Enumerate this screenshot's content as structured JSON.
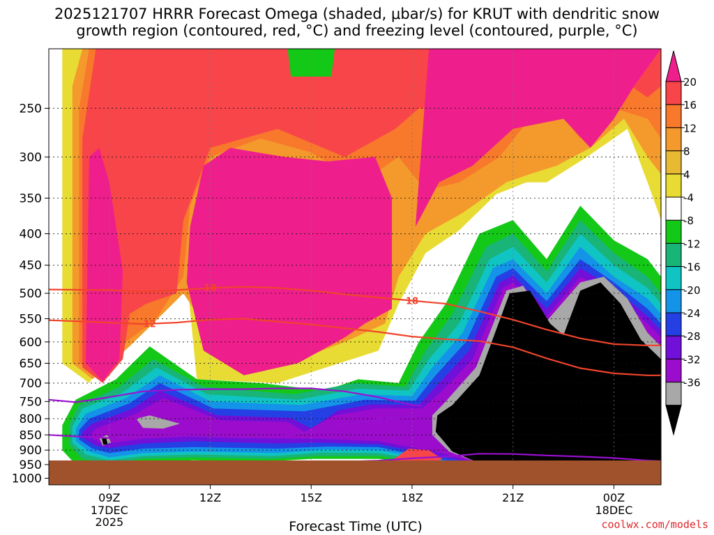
{
  "title_line1": "2025121707 HRRR Forecast Omega (shaded, μbar/s) for KRUT with dendritic snow",
  "title_line2": "growth region (contoured, red, °C) and freezing level (contoured, purple, °C)",
  "credit": "coolwx.com/models",
  "chart_data": {
    "type": "heatmap",
    "xlabel": "Forecast Time (UTC)",
    "ylabel": "",
    "x_range_hours": [
      7.2,
      25.4
    ],
    "y_range_hpa": [
      200,
      1025
    ],
    "y_scale": "log-pressure",
    "grid": true,
    "x_ticks": [
      {
        "hour": 9,
        "label": "09Z",
        "sub": [
          "17DEC",
          "2025"
        ]
      },
      {
        "hour": 12,
        "label": "12Z",
        "sub": []
      },
      {
        "hour": 15,
        "label": "15Z",
        "sub": []
      },
      {
        "hour": 18,
        "label": "18Z",
        "sub": []
      },
      {
        "hour": 21,
        "label": "21Z",
        "sub": []
      },
      {
        "hour": 24,
        "label": "00Z",
        "sub": [
          "18DEC"
        ]
      }
    ],
    "y_ticks": [
      250,
      300,
      350,
      400,
      450,
      500,
      550,
      600,
      650,
      700,
      750,
      800,
      850,
      900,
      950,
      1000
    ],
    "surface_pressure_hpa": 960,
    "colorbar": {
      "labels": [
        "20",
        "16",
        "12",
        "8",
        "4",
        "-4",
        "-8",
        "-12",
        "-16",
        "-20",
        "-24",
        "-28",
        "-32",
        "-36"
      ],
      "colors": [
        "#ee1f8c",
        "#f8454a",
        "#f8782c",
        "#f49a2c",
        "#e8ba34",
        "#e8dc34",
        "#ffffff",
        "#14c818",
        "#18b478",
        "#10c4c4",
        "#1494e8",
        "#2440e4",
        "#7010d8",
        "#9c0ccc",
        "#a8a8a8",
        "#000000"
      ],
      "top_color": "#ee1f8c",
      "bottom_color": "#000000"
    },
    "shading_colors": {
      "ge20": "#ee1f8c",
      "16_20": "#f8454a",
      "12_16": "#f8782c",
      "8_12": "#f49a2c",
      "4_8": "#e8dc34",
      "neg4_4": "#ffffff",
      "neg8_neg4": "#14c818",
      "neg12_neg8": "#18b478",
      "neg16_neg12": "#10c4c4",
      "neg20_neg16": "#1494e8",
      "neg24_neg20": "#2440e4",
      "neg28_neg24": "#7010d8",
      "neg32_neg28": "#9c0ccc",
      "neg36_neg32": "#a8a8a8",
      "lt_neg36": "#000000",
      "ground": "#a0522d"
    },
    "dendritic_contours": [
      {
        "label": "-18",
        "color": "#f0442c",
        "points": [
          [
            7.2,
            493
          ],
          [
            9,
            494
          ],
          [
            10,
            497
          ],
          [
            11,
            494
          ],
          [
            12,
            490
          ],
          [
            13,
            488
          ],
          [
            14,
            490
          ],
          [
            15,
            495
          ],
          [
            16,
            502
          ],
          [
            17,
            508
          ],
          [
            18,
            514
          ],
          [
            19,
            520
          ],
          [
            20,
            535
          ],
          [
            21,
            552
          ],
          [
            22,
            573
          ],
          [
            23,
            592
          ],
          [
            24,
            605
          ],
          [
            25,
            608
          ],
          [
            25.4,
            608
          ]
        ]
      },
      {
        "label": "-12",
        "color": "#f0442c",
        "points": [
          [
            7.2,
            553
          ],
          [
            9,
            558
          ],
          [
            10,
            561
          ],
          [
            11,
            558
          ],
          [
            12,
            552
          ],
          [
            13,
            550
          ],
          [
            14,
            556
          ],
          [
            15,
            562
          ],
          [
            16,
            570
          ],
          [
            17,
            578
          ],
          [
            18,
            588
          ],
          [
            19,
            594
          ],
          [
            20,
            598
          ],
          [
            21,
            612
          ],
          [
            22,
            638
          ],
          [
            23,
            662
          ],
          [
            24,
            675
          ],
          [
            25,
            680
          ],
          [
            25.4,
            680
          ]
        ]
      }
    ],
    "freezing_contours": [
      {
        "label": "0",
        "color": "#9a10d0",
        "points": [
          [
            7.2,
            745
          ],
          [
            8,
            752
          ],
          [
            9,
            738
          ],
          [
            10,
            722
          ],
          [
            11,
            718
          ],
          [
            12,
            716
          ],
          [
            13,
            716
          ],
          [
            14,
            714
          ],
          [
            15,
            714
          ],
          [
            16,
            722
          ],
          [
            17,
            738
          ],
          [
            18,
            760
          ],
          [
            18.3,
            762
          ]
        ]
      },
      {
        "label": "0",
        "color": "#9a10d0",
        "points": [
          [
            7.2,
            850
          ],
          [
            8,
            855
          ],
          [
            9,
            860
          ],
          [
            10,
            856
          ],
          [
            11,
            852
          ],
          [
            12,
            855
          ],
          [
            13,
            858
          ],
          [
            14,
            856
          ],
          [
            15,
            840
          ],
          [
            16,
            815
          ],
          [
            17,
            805
          ],
          [
            18,
            793
          ],
          [
            18.4,
            790
          ]
        ]
      },
      {
        "label": "0",
        "color": "#9a10d0",
        "points": [
          [
            9,
            957
          ],
          [
            10,
            952
          ],
          [
            11,
            955
          ],
          [
            12,
            955
          ],
          [
            13,
            953
          ],
          [
            14,
            950
          ],
          [
            15,
            945
          ],
          [
            16,
            940
          ],
          [
            17,
            936
          ],
          [
            18,
            928
          ],
          [
            19,
            922
          ],
          [
            20,
            912
          ],
          [
            21,
            913
          ],
          [
            22,
            918
          ],
          [
            23,
            922
          ],
          [
            24,
            927
          ],
          [
            25,
            936
          ],
          [
            25.4,
            938
          ]
        ]
      }
    ],
    "contour_labels": [
      {
        "text": "18",
        "hour": 12.0,
        "p": 489,
        "color": "#f0442c"
      },
      {
        "text": "18",
        "hour": 18.0,
        "p": 514,
        "color": "#f0442c"
      },
      {
        "text": "12",
        "hour": 10.2,
        "p": 560,
        "color": "#f0442c"
      },
      {
        "text": "0",
        "hour": 17.0,
        "p": 805,
        "color": "#9a10d0"
      }
    ]
  }
}
